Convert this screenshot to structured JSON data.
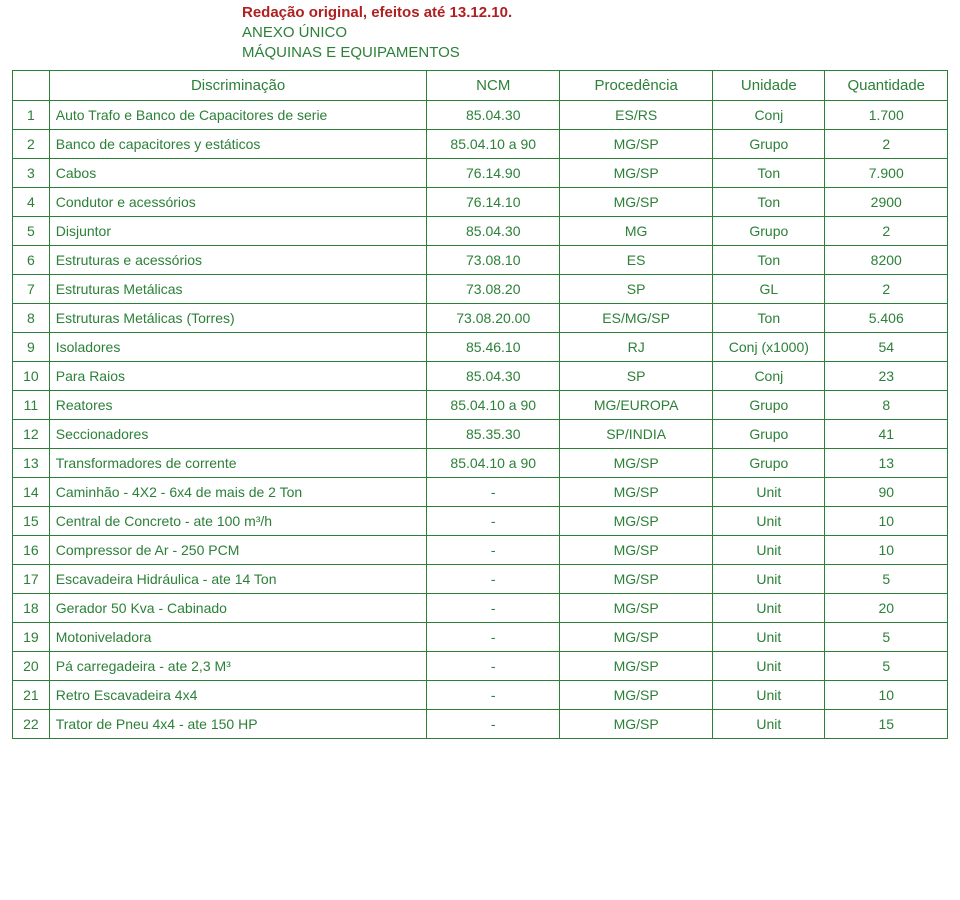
{
  "colors": {
    "text": "#2c8038",
    "border": "#2c8038",
    "title_red": "#b02020",
    "background": "#ffffff"
  },
  "title": {
    "main": "Redação original, efeitos até 13.12.10.",
    "line1": "ANEXO ÚNICO",
    "line2": "MÁQUINAS E EQUIPAMENTOS"
  },
  "headers": {
    "blank": "",
    "discriminacao": "Discriminação",
    "ncm": "NCM",
    "procedencia": "Procedência",
    "unidade": "Unidade",
    "quantidade": "Quantidade"
  },
  "rows": [
    {
      "n": "1",
      "desc": "Auto Trafo e Banco de Capacitores de serie",
      "ncm": "85.04.30",
      "proc": "ES/RS",
      "unid": "Conj",
      "qtd": "1.700"
    },
    {
      "n": "2",
      "desc": "Banco de capacitores y estáticos",
      "ncm": "85.04.10 a 90",
      "proc": "MG/SP",
      "unid": "Grupo",
      "qtd": "2"
    },
    {
      "n": "3",
      "desc": "Cabos",
      "ncm": "76.14.90",
      "proc": "MG/SP",
      "unid": "Ton",
      "qtd": "7.900"
    },
    {
      "n": "4",
      "desc": "Condutor e acessórios",
      "ncm": "76.14.10",
      "proc": "MG/SP",
      "unid": "Ton",
      "qtd": "2900"
    },
    {
      "n": "5",
      "desc": "Disjuntor",
      "ncm": "85.04.30",
      "proc": "MG",
      "unid": "Grupo",
      "qtd": "2"
    },
    {
      "n": "6",
      "desc": "Estruturas e acessórios",
      "ncm": "73.08.10",
      "proc": "ES",
      "unid": "Ton",
      "qtd": "8200"
    },
    {
      "n": "7",
      "desc": "Estruturas Metálicas",
      "ncm": "73.08.20",
      "proc": "SP",
      "unid": "GL",
      "qtd": "2"
    },
    {
      "n": "8",
      "desc": "Estruturas Metálicas (Torres)",
      "ncm": "73.08.20.00",
      "proc": "ES/MG/SP",
      "unid": "Ton",
      "qtd": "5.406"
    },
    {
      "n": "9",
      "desc": "Isoladores",
      "ncm": "85.46.10",
      "proc": "RJ",
      "unid": "Conj (x1000)",
      "qtd": "54"
    },
    {
      "n": "10",
      "desc": "Para Raios",
      "ncm": "85.04.30",
      "proc": "SP",
      "unid": "Conj",
      "qtd": "23"
    },
    {
      "n": "11",
      "desc": "Reatores",
      "ncm": "85.04.10 a 90",
      "proc": "MG/EUROPA",
      "unid": "Grupo",
      "qtd": "8"
    },
    {
      "n": "12",
      "desc": "Seccionadores",
      "ncm": "85.35.30",
      "proc": "SP/INDIA",
      "unid": "Grupo",
      "qtd": "41"
    },
    {
      "n": "13",
      "desc": "Transformadores de corrente",
      "ncm": "85.04.10 a 90",
      "proc": "MG/SP",
      "unid": "Grupo",
      "qtd": "13"
    },
    {
      "n": "14",
      "desc": "Caminhão - 4X2 - 6x4 de mais de 2 Ton",
      "ncm": "-",
      "proc": "MG/SP",
      "unid": "Unit",
      "qtd": "90"
    },
    {
      "n": "15",
      "desc": "Central de Concreto - ate 100 m³/h",
      "ncm": "-",
      "proc": "MG/SP",
      "unid": "Unit",
      "qtd": "10"
    },
    {
      "n": "16",
      "desc": "Compressor de Ar - 250 PCM",
      "ncm": "-",
      "proc": "MG/SP",
      "unid": "Unit",
      "qtd": "10"
    },
    {
      "n": "17",
      "desc": "Escavadeira Hidráulica - ate 14 Ton",
      "ncm": "-",
      "proc": "MG/SP",
      "unid": "Unit",
      "qtd": "5"
    },
    {
      "n": "18",
      "desc": "Gerador 50 Kva - Cabinado",
      "ncm": "-",
      "proc": "MG/SP",
      "unid": "Unit",
      "qtd": "20"
    },
    {
      "n": "19",
      "desc": "Motoniveladora",
      "ncm": "-",
      "proc": "MG/SP",
      "unid": "Unit",
      "qtd": "5"
    },
    {
      "n": "20",
      "desc": "Pá carregadeira - ate 2,3 M³",
      "ncm": "-",
      "proc": "MG/SP",
      "unid": "Unit",
      "qtd": "5"
    },
    {
      "n": "21",
      "desc": "Retro Escavadeira 4x4",
      "ncm": "-",
      "proc": "MG/SP",
      "unid": "Unit",
      "qtd": "10"
    },
    {
      "n": "22",
      "desc": "Trator de Pneu 4x4 - ate 150 HP",
      "ncm": "-",
      "proc": "MG/SP",
      "unid": "Unit",
      "qtd": "15"
    }
  ]
}
